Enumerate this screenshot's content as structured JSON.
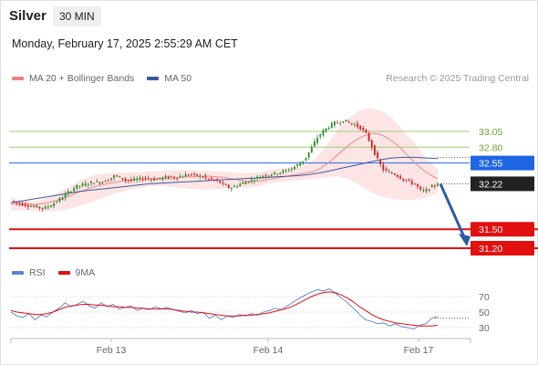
{
  "header": {
    "instrument": "Silver",
    "timeframe": "30 MIN",
    "datetime": "Monday, February 17, 2025 2:55:29 AM CET"
  },
  "legend": {
    "ma20": "MA 20 + Bollinger Bands",
    "ma50": "MA 50",
    "rsi": "RSI",
    "ma9": "9MA"
  },
  "credit": "Research © 2025 Trading Central",
  "colors": {
    "bullish_candle": "#2e8b2e",
    "bearish_candle": "#cc2222",
    "ma20": "#f08080",
    "ma50": "#3a5ba0",
    "bollinger_fill": "#fde0e0",
    "resistance_green": "#9ccc7a",
    "pivot_blue": "#1f66e5",
    "support_red": "#e31010",
    "rsi": "#5b7fd6",
    "rsi_ma": "#e31010",
    "arrow": "#2a5ca8"
  },
  "chart_data": [
    {
      "type": "candlestick",
      "title": "Silver",
      "timeframe": "30 MIN",
      "x_ticks": [
        "Feb 13",
        "Feb 14",
        "Feb 17"
      ],
      "ylim": [
        31.0,
        33.5
      ],
      "levels": [
        {
          "value": 33.05,
          "label": "33.05",
          "kind": "resistance",
          "color": "#9ccc7a"
        },
        {
          "value": 32.8,
          "label": "32.80",
          "kind": "resistance",
          "color": "#9ccc7a"
        },
        {
          "value": 32.55,
          "label": "32.55",
          "kind": "pivot",
          "color": "#1f66e5"
        },
        {
          "value": 31.5,
          "label": "31.50",
          "kind": "support",
          "color": "#e31010"
        },
        {
          "value": 31.2,
          "label": "31.20",
          "kind": "support",
          "color": "#e31010"
        }
      ],
      "last_price": {
        "value": 32.22,
        "label": "32.22"
      },
      "price_path": [
        31.95,
        31.92,
        31.9,
        31.88,
        31.86,
        31.85,
        31.83,
        31.87,
        31.92,
        31.98,
        32.05,
        32.12,
        32.18,
        32.2,
        32.22,
        32.25,
        32.24,
        32.26,
        32.3,
        32.35,
        32.32,
        32.28,
        32.27,
        32.29,
        32.3,
        32.31,
        32.29,
        32.3,
        32.32,
        32.33,
        32.32,
        32.34,
        32.36,
        32.37,
        32.35,
        32.33,
        32.3,
        32.28,
        32.25,
        32.2,
        32.15,
        32.18,
        32.22,
        32.25,
        32.28,
        32.32,
        32.35,
        32.36,
        32.38,
        32.4,
        32.42,
        32.45,
        32.5,
        32.55,
        32.65,
        32.8,
        32.95,
        33.05,
        33.12,
        33.18,
        33.2,
        33.22,
        33.18,
        33.15,
        33.1,
        33.0,
        32.8,
        32.6,
        32.45,
        32.4,
        32.38,
        32.33,
        32.28,
        32.25,
        32.2,
        32.1,
        32.12,
        32.18,
        32.22
      ],
      "ma20_path": [
        31.9,
        31.9,
        31.89,
        31.89,
        31.9,
        31.92,
        31.95,
        31.99,
        32.03,
        32.08,
        32.12,
        32.16,
        32.19,
        32.22,
        32.24,
        32.26,
        32.28,
        32.29,
        32.3,
        32.3,
        32.3,
        32.3,
        32.31,
        32.32,
        32.33,
        32.33,
        32.34,
        32.34,
        32.33,
        32.32,
        32.3,
        32.28,
        32.26,
        32.26,
        32.27,
        32.29,
        32.31,
        32.33,
        32.35,
        32.37,
        32.39,
        32.41,
        32.46,
        32.54,
        32.64,
        32.74,
        32.84,
        32.92,
        32.98,
        33.02,
        33.01,
        32.96,
        32.88,
        32.78,
        32.66,
        32.54,
        32.44,
        32.36,
        32.3
      ],
      "ma50_path": [
        31.92,
        31.95,
        31.98,
        32.01,
        32.04,
        32.07,
        32.1,
        32.12,
        32.14,
        32.16,
        32.18,
        32.2,
        32.22,
        32.23,
        32.24,
        32.25,
        32.26,
        32.27,
        32.28,
        32.29,
        32.3,
        32.31,
        32.32,
        32.33,
        32.34,
        32.35,
        32.37,
        32.4,
        32.44,
        32.48,
        32.52,
        32.56,
        32.6,
        32.63,
        32.64,
        32.64,
        32.63,
        32.62
      ],
      "bb_upper_path": [
        32.0,
        31.96,
        31.94,
        31.98,
        32.06,
        32.16,
        32.26,
        32.34,
        32.38,
        32.4,
        32.4,
        32.4,
        32.41,
        32.42,
        32.43,
        32.44,
        32.44,
        32.43,
        32.42,
        32.41,
        32.4,
        32.39,
        32.4,
        32.44,
        32.46,
        32.48,
        32.5,
        32.6,
        32.8,
        33.05,
        33.25,
        33.38,
        33.42,
        33.38,
        33.25,
        33.05,
        32.85,
        32.62,
        32.45
      ],
      "bb_lower_path": [
        31.8,
        31.8,
        31.79,
        31.78,
        31.79,
        31.82,
        31.86,
        31.92,
        31.98,
        32.05,
        32.1,
        32.14,
        32.17,
        32.19,
        32.18,
        32.16,
        32.14,
        32.13,
        32.13,
        32.14,
        32.15,
        32.16,
        32.18,
        32.22,
        32.25,
        32.27,
        32.28,
        32.3,
        32.32,
        32.34,
        32.3,
        32.2,
        32.1,
        32.02,
        31.98,
        31.96,
        31.97,
        32.0,
        32.08
      ],
      "projection": {
        "from": 32.22,
        "to": 31.2
      }
    },
    {
      "type": "line",
      "title": "RSI",
      "ylim": [
        20,
        80
      ],
      "y_ticks": [
        70,
        50,
        30
      ],
      "series": [
        {
          "name": "RSI",
          "values": [
            50,
            45,
            43,
            48,
            40,
            46,
            44,
            50,
            55,
            62,
            57,
            60,
            64,
            58,
            55,
            62,
            57,
            60,
            54,
            56,
            58,
            52,
            55,
            53,
            57,
            54,
            56,
            53,
            51,
            49,
            52,
            48,
            50,
            42,
            46,
            40,
            45,
            43,
            47,
            45,
            48,
            46,
            50,
            52,
            55,
            53,
            58,
            63,
            68,
            72,
            76,
            79,
            77,
            80,
            74,
            68,
            62,
            55,
            47,
            40,
            38,
            35,
            36,
            32,
            35,
            31,
            30,
            28,
            33,
            35,
            42,
            44
          ]
        },
        {
          "name": "9MA",
          "values": [
            52,
            50,
            49,
            48,
            47,
            47,
            48,
            50,
            53,
            56,
            58,
            59,
            60,
            60,
            59,
            59,
            58,
            57,
            57,
            56,
            56,
            55,
            55,
            54,
            54,
            54,
            54,
            53,
            52,
            51,
            50,
            50,
            49,
            48,
            47,
            46,
            45,
            45,
            45,
            46,
            46,
            47,
            48,
            49,
            51,
            53,
            55,
            58,
            62,
            66,
            70,
            73,
            75,
            76,
            75,
            72,
            68,
            63,
            57,
            52,
            47,
            43,
            40,
            38,
            36,
            35,
            34,
            33,
            32,
            32,
            32,
            33
          ]
        }
      ]
    }
  ]
}
